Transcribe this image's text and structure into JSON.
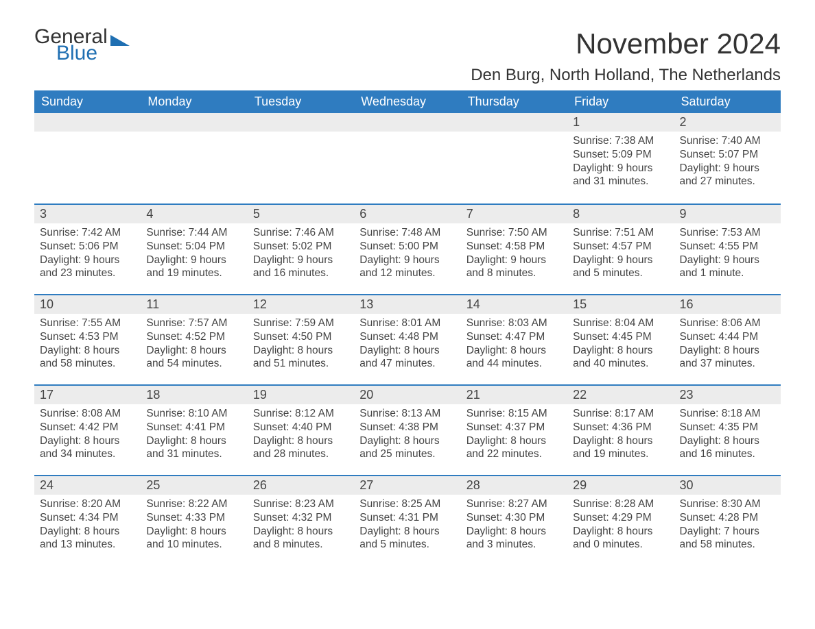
{
  "logo": {
    "text1": "General",
    "text2": "Blue",
    "icon_color": "#1f6fb2",
    "text1_color": "#333333",
    "text2_color": "#1f6fb2"
  },
  "title": "November 2024",
  "location": "Den Burg, North Holland, The Netherlands",
  "colors": {
    "header_bg": "#2f7cc0",
    "header_text": "#ffffff",
    "row_top_border": "#2f7cc0",
    "daynum_bg": "#ececec",
    "body_text": "#444444",
    "page_bg": "#ffffff"
  },
  "layout": {
    "columns": 7,
    "rows": 5,
    "fontsize_title": 42,
    "fontsize_location": 24,
    "fontsize_header": 18,
    "fontsize_daynum": 18,
    "fontsize_body": 15.5
  },
  "weekdays": [
    "Sunday",
    "Monday",
    "Tuesday",
    "Wednesday",
    "Thursday",
    "Friday",
    "Saturday"
  ],
  "weeks": [
    [
      null,
      null,
      null,
      null,
      null,
      {
        "day": "1",
        "sunrise": "Sunrise: 7:38 AM",
        "sunset": "Sunset: 5:09 PM",
        "daylight": "Daylight: 9 hours and 31 minutes."
      },
      {
        "day": "2",
        "sunrise": "Sunrise: 7:40 AM",
        "sunset": "Sunset: 5:07 PM",
        "daylight": "Daylight: 9 hours and 27 minutes."
      }
    ],
    [
      {
        "day": "3",
        "sunrise": "Sunrise: 7:42 AM",
        "sunset": "Sunset: 5:06 PM",
        "daylight": "Daylight: 9 hours and 23 minutes."
      },
      {
        "day": "4",
        "sunrise": "Sunrise: 7:44 AM",
        "sunset": "Sunset: 5:04 PM",
        "daylight": "Daylight: 9 hours and 19 minutes."
      },
      {
        "day": "5",
        "sunrise": "Sunrise: 7:46 AM",
        "sunset": "Sunset: 5:02 PM",
        "daylight": "Daylight: 9 hours and 16 minutes."
      },
      {
        "day": "6",
        "sunrise": "Sunrise: 7:48 AM",
        "sunset": "Sunset: 5:00 PM",
        "daylight": "Daylight: 9 hours and 12 minutes."
      },
      {
        "day": "7",
        "sunrise": "Sunrise: 7:50 AM",
        "sunset": "Sunset: 4:58 PM",
        "daylight": "Daylight: 9 hours and 8 minutes."
      },
      {
        "day": "8",
        "sunrise": "Sunrise: 7:51 AM",
        "sunset": "Sunset: 4:57 PM",
        "daylight": "Daylight: 9 hours and 5 minutes."
      },
      {
        "day": "9",
        "sunrise": "Sunrise: 7:53 AM",
        "sunset": "Sunset: 4:55 PM",
        "daylight": "Daylight: 9 hours and 1 minute."
      }
    ],
    [
      {
        "day": "10",
        "sunrise": "Sunrise: 7:55 AM",
        "sunset": "Sunset: 4:53 PM",
        "daylight": "Daylight: 8 hours and 58 minutes."
      },
      {
        "day": "11",
        "sunrise": "Sunrise: 7:57 AM",
        "sunset": "Sunset: 4:52 PM",
        "daylight": "Daylight: 8 hours and 54 minutes."
      },
      {
        "day": "12",
        "sunrise": "Sunrise: 7:59 AM",
        "sunset": "Sunset: 4:50 PM",
        "daylight": "Daylight: 8 hours and 51 minutes."
      },
      {
        "day": "13",
        "sunrise": "Sunrise: 8:01 AM",
        "sunset": "Sunset: 4:48 PM",
        "daylight": "Daylight: 8 hours and 47 minutes."
      },
      {
        "day": "14",
        "sunrise": "Sunrise: 8:03 AM",
        "sunset": "Sunset: 4:47 PM",
        "daylight": "Daylight: 8 hours and 44 minutes."
      },
      {
        "day": "15",
        "sunrise": "Sunrise: 8:04 AM",
        "sunset": "Sunset: 4:45 PM",
        "daylight": "Daylight: 8 hours and 40 minutes."
      },
      {
        "day": "16",
        "sunrise": "Sunrise: 8:06 AM",
        "sunset": "Sunset: 4:44 PM",
        "daylight": "Daylight: 8 hours and 37 minutes."
      }
    ],
    [
      {
        "day": "17",
        "sunrise": "Sunrise: 8:08 AM",
        "sunset": "Sunset: 4:42 PM",
        "daylight": "Daylight: 8 hours and 34 minutes."
      },
      {
        "day": "18",
        "sunrise": "Sunrise: 8:10 AM",
        "sunset": "Sunset: 4:41 PM",
        "daylight": "Daylight: 8 hours and 31 minutes."
      },
      {
        "day": "19",
        "sunrise": "Sunrise: 8:12 AM",
        "sunset": "Sunset: 4:40 PM",
        "daylight": "Daylight: 8 hours and 28 minutes."
      },
      {
        "day": "20",
        "sunrise": "Sunrise: 8:13 AM",
        "sunset": "Sunset: 4:38 PM",
        "daylight": "Daylight: 8 hours and 25 minutes."
      },
      {
        "day": "21",
        "sunrise": "Sunrise: 8:15 AM",
        "sunset": "Sunset: 4:37 PM",
        "daylight": "Daylight: 8 hours and 22 minutes."
      },
      {
        "day": "22",
        "sunrise": "Sunrise: 8:17 AM",
        "sunset": "Sunset: 4:36 PM",
        "daylight": "Daylight: 8 hours and 19 minutes."
      },
      {
        "day": "23",
        "sunrise": "Sunrise: 8:18 AM",
        "sunset": "Sunset: 4:35 PM",
        "daylight": "Daylight: 8 hours and 16 minutes."
      }
    ],
    [
      {
        "day": "24",
        "sunrise": "Sunrise: 8:20 AM",
        "sunset": "Sunset: 4:34 PM",
        "daylight": "Daylight: 8 hours and 13 minutes."
      },
      {
        "day": "25",
        "sunrise": "Sunrise: 8:22 AM",
        "sunset": "Sunset: 4:33 PM",
        "daylight": "Daylight: 8 hours and 10 minutes."
      },
      {
        "day": "26",
        "sunrise": "Sunrise: 8:23 AM",
        "sunset": "Sunset: 4:32 PM",
        "daylight": "Daylight: 8 hours and 8 minutes."
      },
      {
        "day": "27",
        "sunrise": "Sunrise: 8:25 AM",
        "sunset": "Sunset: 4:31 PM",
        "daylight": "Daylight: 8 hours and 5 minutes."
      },
      {
        "day": "28",
        "sunrise": "Sunrise: 8:27 AM",
        "sunset": "Sunset: 4:30 PM",
        "daylight": "Daylight: 8 hours and 3 minutes."
      },
      {
        "day": "29",
        "sunrise": "Sunrise: 8:28 AM",
        "sunset": "Sunset: 4:29 PM",
        "daylight": "Daylight: 8 hours and 0 minutes."
      },
      {
        "day": "30",
        "sunrise": "Sunrise: 8:30 AM",
        "sunset": "Sunset: 4:28 PM",
        "daylight": "Daylight: 7 hours and 58 minutes."
      }
    ]
  ]
}
